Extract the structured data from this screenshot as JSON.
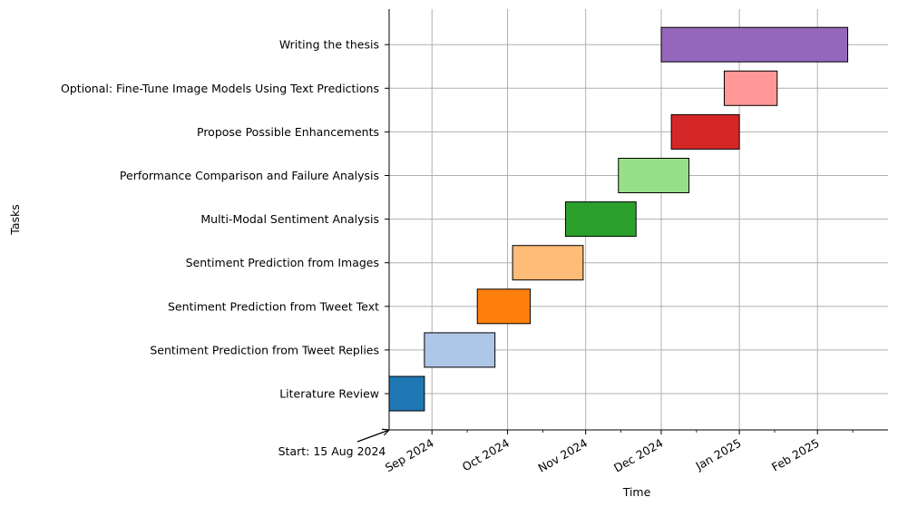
{
  "chart_data": {
    "type": "gantt",
    "title": "",
    "xlabel": "Time",
    "ylabel": "Tasks",
    "xlim": [
      "2024-08-15",
      "2025-03-01"
    ],
    "grid": true,
    "x_ticks": [
      {
        "date": "2024-09-01",
        "label": "Sep 2024"
      },
      {
        "date": "2024-10-01",
        "label": "Oct 2024"
      },
      {
        "date": "2024-11-01",
        "label": "Nov 2024"
      },
      {
        "date": "2024-12-01",
        "label": "Dec 2024"
      },
      {
        "date": "2025-01-01",
        "label": "Jan 2025"
      },
      {
        "date": "2025-02-01",
        "label": "Feb 2025"
      }
    ],
    "x_minor_ticks": [
      "2024-09-15",
      "2024-10-15",
      "2024-11-15",
      "2024-12-15",
      "2025-01-15",
      "2025-02-15"
    ],
    "annotation": {
      "text": "Start: 15 Aug 2024",
      "date": "2024-08-15"
    },
    "tasks": [
      {
        "name": "Literature Review",
        "start": "2024-08-15",
        "end": "2024-08-29",
        "color": "#1f77b4"
      },
      {
        "name": "Sentiment Prediction from Tweet Replies",
        "start": "2024-08-29",
        "end": "2024-09-26",
        "color": "#aec7e8"
      },
      {
        "name": "Sentiment Prediction from Tweet Text",
        "start": "2024-09-19",
        "end": "2024-10-10",
        "color": "#ff7f0e"
      },
      {
        "name": "Sentiment Prediction from Images",
        "start": "2024-10-03",
        "end": "2024-10-31",
        "color": "#ffbb78"
      },
      {
        "name": "Multi-Modal Sentiment Analysis",
        "start": "2024-10-24",
        "end": "2024-11-21",
        "color": "#2ca02c"
      },
      {
        "name": "Performance Comparison and Failure Analysis",
        "start": "2024-11-14",
        "end": "2024-12-12",
        "color": "#98df8a"
      },
      {
        "name": "Propose Possible Enhancements",
        "start": "2024-12-05",
        "end": "2025-01-01",
        "color": "#d62728"
      },
      {
        "name": "Optional: Fine-Tune Image Models Using Text Predictions",
        "start": "2024-12-26",
        "end": "2025-01-16",
        "color": "#ff9896"
      },
      {
        "name": "Writing the thesis",
        "start": "2024-12-01",
        "end": "2025-02-13",
        "color": "#9467bd"
      }
    ]
  }
}
